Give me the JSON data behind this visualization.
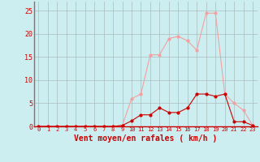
{
  "x": [
    0,
    1,
    2,
    3,
    4,
    5,
    6,
    7,
    8,
    9,
    10,
    11,
    12,
    13,
    14,
    15,
    16,
    17,
    18,
    19,
    20,
    21,
    22,
    23
  ],
  "rafales": [
    0,
    0,
    0,
    0,
    0,
    0,
    0,
    0,
    0,
    0.2,
    6,
    7,
    15.5,
    15.5,
    19,
    19.5,
    18.5,
    16.5,
    24.5,
    24.5,
    7,
    5,
    3.5,
    0.2
  ],
  "moyen": [
    0,
    0,
    0,
    0,
    0,
    0,
    0,
    0,
    0,
    0.2,
    1.2,
    2.5,
    2.5,
    4,
    3,
    3,
    4,
    7,
    7,
    6.5,
    7,
    1,
    1,
    0.2
  ],
  "color_rafales": "#f4a0a0",
  "color_moyen": "#cc0000",
  "background_color": "#cceef0",
  "grid_color": "#aabbbb",
  "xlabel": "Vent moyen/en rafales ( km/h )",
  "xlabel_color": "#cc0000",
  "xlabel_fontsize": 7,
  "ylabel_ticks": [
    0,
    5,
    10,
    15,
    20,
    25
  ],
  "xtick_labels": [
    "0",
    "1",
    "2",
    "3",
    "4",
    "5",
    "6",
    "7",
    "8",
    "9",
    "10",
    "11",
    "12",
    "13",
    "14",
    "15",
    "16",
    "17",
    "18",
    "19",
    "20",
    "21",
    "22",
    "23"
  ],
  "ylim": [
    0,
    27
  ],
  "xlim": [
    -0.5,
    23.5
  ],
  "ytick_fontsize": 6,
  "xtick_fontsize": 5,
  "marker_size": 2,
  "linewidth": 0.8
}
